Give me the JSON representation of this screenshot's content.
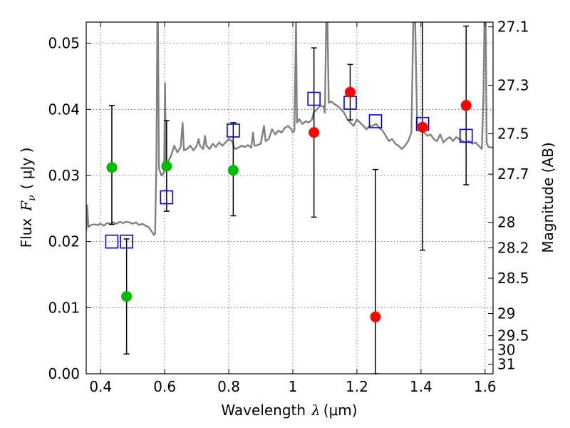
{
  "chart_data": {
    "type": "scatter",
    "xlabel_text": "Wavelength",
    "xlabel_symbol": "λ",
    "xlabel_unit": "(μm)",
    "ylabel_text": "Flux",
    "ylabel_symbol": "F",
    "ylabel_sub": "ν",
    "ylabel_unit": "( μJy )",
    "ylabel_right": "Magnitude (AB)",
    "xlim": [
      0.355,
      1.625
    ],
    "ylim": [
      0.0,
      0.0532
    ],
    "xticks": [
      {
        "v": 0.4,
        "label": "0.4"
      },
      {
        "v": 0.6,
        "label": "0.6"
      },
      {
        "v": 0.8,
        "label": "0.8"
      },
      {
        "v": 1.0,
        "label": "1"
      },
      {
        "v": 1.2,
        "label": "1.2"
      },
      {
        "v": 1.4,
        "label": "1.4"
      },
      {
        "v": 1.6,
        "label": "1.6"
      }
    ],
    "yticks": [
      {
        "v": 0.0,
        "label": "0.00"
      },
      {
        "v": 0.01,
        "label": "0.01"
      },
      {
        "v": 0.02,
        "label": "0.02"
      },
      {
        "v": 0.03,
        "label": "0.03"
      },
      {
        "v": 0.04,
        "label": "0.04"
      },
      {
        "v": 0.05,
        "label": "0.05"
      }
    ],
    "mag_ticks": [
      {
        "mag": 27.1,
        "label": "27.1"
      },
      {
        "mag": 27.3,
        "label": "27.3"
      },
      {
        "mag": 27.5,
        "label": "27.5"
      },
      {
        "mag": 27.7,
        "label": "27.7"
      },
      {
        "mag": 28.0,
        "label": "28"
      },
      {
        "mag": 28.2,
        "label": "28.2"
      },
      {
        "mag": 28.5,
        "label": "28.5"
      },
      {
        "mag": 29.0,
        "label": "29"
      },
      {
        "mag": 29.5,
        "label": "29.5"
      },
      {
        "mag": 30.0,
        "label": "30"
      },
      {
        "mag": 31.0,
        "label": "31"
      }
    ],
    "colors": {
      "green": "#00bb00",
      "red": "#ff0000",
      "blue": "#0000cc",
      "model": "#808080",
      "errorbar": "#000000",
      "grid": "#555555"
    },
    "green_points": [
      {
        "x": 0.435,
        "y": 0.0312,
        "yerr_low": 0.0086,
        "yerr_high": 0.0094
      },
      {
        "x": 0.481,
        "y": 0.0117,
        "yerr_low": 0.0087,
        "yerr_high": 0.0087
      },
      {
        "x": 0.606,
        "y": 0.0314,
        "yerr_low": 0.0068,
        "yerr_high": 0.0069
      },
      {
        "x": 0.814,
        "y": 0.0308,
        "yerr_low": 0.0069,
        "yerr_high": 0.0072
      }
    ],
    "red_points": [
      {
        "x": 1.066,
        "y": 0.0365,
        "yerr_low": 0.0128,
        "yerr_high": 0.0128
      },
      {
        "x": 1.179,
        "y": 0.0426,
        "yerr_low": 0.0042,
        "yerr_high": 0.0042
      },
      {
        "x": 1.258,
        "y": 0.0086,
        "yerr_low": 0.0086,
        "yerr_high": 0.0223
      },
      {
        "x": 1.405,
        "y": 0.0373,
        "yerr_low": 0.0186,
        "yerr_high": 0.0186
      },
      {
        "x": 1.541,
        "y": 0.0406,
        "yerr_low": 0.012,
        "yerr_high": 0.012
      }
    ],
    "blue_squares": [
      {
        "x": 0.435,
        "y": 0.02
      },
      {
        "x": 0.481,
        "y": 0.02
      },
      {
        "x": 0.606,
        "y": 0.0267
      },
      {
        "x": 0.814,
        "y": 0.0368
      },
      {
        "x": 1.066,
        "y": 0.0416
      },
      {
        "x": 1.179,
        "y": 0.041
      },
      {
        "x": 1.258,
        "y": 0.0382
      },
      {
        "x": 1.405,
        "y": 0.0378
      },
      {
        "x": 1.541,
        "y": 0.036
      }
    ],
    "model_spectrum": [
      [
        0.355,
        0.0215
      ],
      [
        0.358,
        0.0255
      ],
      [
        0.362,
        0.0222
      ],
      [
        0.37,
        0.0225
      ],
      [
        0.38,
        0.0226
      ],
      [
        0.39,
        0.0225
      ],
      [
        0.4,
        0.0227
      ],
      [
        0.41,
        0.0224
      ],
      [
        0.42,
        0.0228
      ],
      [
        0.43,
        0.0227
      ],
      [
        0.44,
        0.0229
      ],
      [
        0.45,
        0.0227
      ],
      [
        0.46,
        0.023
      ],
      [
        0.47,
        0.0228
      ],
      [
        0.48,
        0.023
      ],
      [
        0.49,
        0.0229
      ],
      [
        0.5,
        0.0227
      ],
      [
        0.51,
        0.0229
      ],
      [
        0.52,
        0.0225
      ],
      [
        0.53,
        0.0227
      ],
      [
        0.54,
        0.0224
      ],
      [
        0.55,
        0.0222
      ],
      [
        0.56,
        0.0215
      ],
      [
        0.566,
        0.021
      ],
      [
        0.57,
        0.0212
      ],
      [
        0.574,
        0.032
      ],
      [
        0.577,
        0.0532
      ],
      [
        0.579,
        0.0532
      ],
      [
        0.582,
        0.031
      ],
      [
        0.59,
        0.03
      ],
      [
        0.598,
        0.0305
      ],
      [
        0.601,
        0.044
      ],
      [
        0.604,
        0.0315
      ],
      [
        0.61,
        0.032
      ],
      [
        0.62,
        0.033
      ],
      [
        0.63,
        0.0345
      ],
      [
        0.64,
        0.0335
      ],
      [
        0.65,
        0.0343
      ],
      [
        0.656,
        0.038
      ],
      [
        0.66,
        0.0338
      ],
      [
        0.67,
        0.034
      ],
      [
        0.68,
        0.0345
      ],
      [
        0.69,
        0.0338
      ],
      [
        0.7,
        0.0345
      ],
      [
        0.706,
        0.0355
      ],
      [
        0.71,
        0.0345
      ],
      [
        0.72,
        0.034
      ],
      [
        0.726,
        0.036
      ],
      [
        0.73,
        0.0345
      ],
      [
        0.74,
        0.034
      ],
      [
        0.75,
        0.0348
      ],
      [
        0.76,
        0.0343
      ],
      [
        0.77,
        0.035
      ],
      [
        0.78,
        0.0345
      ],
      [
        0.79,
        0.035
      ],
      [
        0.8,
        0.0355
      ],
      [
        0.81,
        0.0352
      ],
      [
        0.815,
        0.0345
      ],
      [
        0.82,
        0.034
      ],
      [
        0.83,
        0.0342
      ],
      [
        0.84,
        0.0345
      ],
      [
        0.85,
        0.0343
      ],
      [
        0.86,
        0.0346
      ],
      [
        0.87,
        0.0342
      ],
      [
        0.876,
        0.0365
      ],
      [
        0.88,
        0.0345
      ],
      [
        0.89,
        0.0346
      ],
      [
        0.9,
        0.0348
      ],
      [
        0.91,
        0.0375
      ],
      [
        0.915,
        0.0352
      ],
      [
        0.925,
        0.0355
      ],
      [
        0.935,
        0.037
      ],
      [
        0.945,
        0.0362
      ],
      [
        0.955,
        0.0368
      ],
      [
        0.965,
        0.0365
      ],
      [
        0.975,
        0.0372
      ],
      [
        0.985,
        0.0375
      ],
      [
        0.995,
        0.037
      ],
      [
        1.0,
        0.0365
      ],
      [
        1.005,
        0.0368
      ],
      [
        1.01,
        0.0532
      ],
      [
        1.013,
        0.038
      ],
      [
        1.02,
        0.0385
      ],
      [
        1.03,
        0.0378
      ],
      [
        1.04,
        0.0382
      ],
      [
        1.05,
        0.038
      ],
      [
        1.06,
        0.0385
      ],
      [
        1.065,
        0.0395
      ],
      [
        1.075,
        0.04
      ],
      [
        1.085,
        0.0405
      ],
      [
        1.095,
        0.0405
      ],
      [
        1.1,
        0.0395
      ],
      [
        1.104,
        0.0532
      ],
      [
        1.108,
        0.0532
      ],
      [
        1.112,
        0.041
      ],
      [
        1.12,
        0.0412
      ],
      [
        1.13,
        0.0408
      ],
      [
        1.14,
        0.0405
      ],
      [
        1.15,
        0.04
      ],
      [
        1.16,
        0.0395
      ],
      [
        1.17,
        0.0385
      ],
      [
        1.18,
        0.038
      ],
      [
        1.19,
        0.0375
      ],
      [
        1.2,
        0.0385
      ],
      [
        1.21,
        0.038
      ],
      [
        1.22,
        0.0375
      ],
      [
        1.23,
        0.037
      ],
      [
        1.24,
        0.0375
      ],
      [
        1.25,
        0.0375
      ],
      [
        1.26,
        0.0378
      ],
      [
        1.27,
        0.0372
      ],
      [
        1.28,
        0.0368
      ],
      [
        1.29,
        0.036
      ],
      [
        1.3,
        0.0352
      ],
      [
        1.31,
        0.0355
      ],
      [
        1.32,
        0.0348
      ],
      [
        1.33,
        0.0345
      ],
      [
        1.34,
        0.034
      ],
      [
        1.35,
        0.0345
      ],
      [
        1.36,
        0.0352
      ],
      [
        1.37,
        0.0365
      ],
      [
        1.376,
        0.0532
      ],
      [
        1.382,
        0.0532
      ],
      [
        1.388,
        0.038
      ],
      [
        1.395,
        0.037
      ],
      [
        1.4,
        0.0368
      ],
      [
        1.41,
        0.0365
      ],
      [
        1.42,
        0.036
      ],
      [
        1.43,
        0.0362
      ],
      [
        1.44,
        0.0355
      ],
      [
        1.45,
        0.0352
      ],
      [
        1.46,
        0.0362
      ],
      [
        1.47,
        0.035
      ],
      [
        1.48,
        0.0355
      ],
      [
        1.49,
        0.0358
      ],
      [
        1.5,
        0.0352
      ],
      [
        1.51,
        0.0358
      ],
      [
        1.52,
        0.0355
      ],
      [
        1.53,
        0.0352
      ],
      [
        1.54,
        0.035
      ],
      [
        1.55,
        0.0352
      ],
      [
        1.56,
        0.0348
      ],
      [
        1.57,
        0.035
      ],
      [
        1.58,
        0.0345
      ],
      [
        1.59,
        0.034
      ],
      [
        1.595,
        0.042
      ],
      [
        1.598,
        0.0532
      ],
      [
        1.602,
        0.0532
      ],
      [
        1.605,
        0.035
      ],
      [
        1.61,
        0.0343
      ],
      [
        1.625,
        0.0342
      ]
    ]
  }
}
